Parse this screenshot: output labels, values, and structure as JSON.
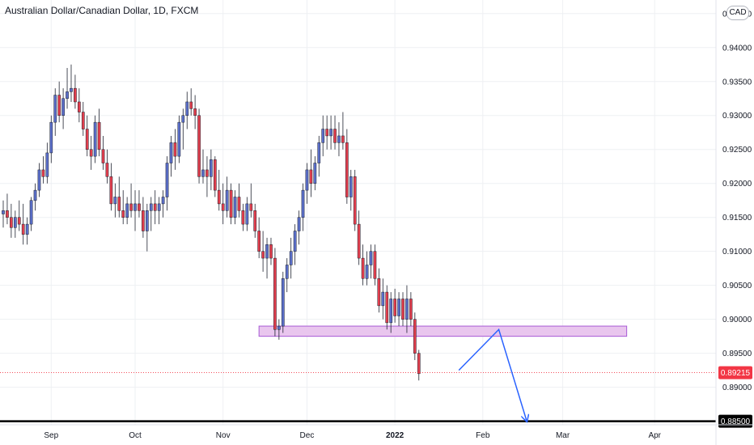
{
  "title": "Australian Dollar/Canadian Dollar, 1D, FXCM",
  "currency_badge": "CAD",
  "colors": {
    "up": "#5b6fc9",
    "down": "#e33f4e",
    "zone_fill": "#e9c6ee",
    "zone_stroke": "#a85bd6",
    "arrow": "#2962ff",
    "grid": "#eef0f3",
    "current": "#f23645"
  },
  "chart_data": {
    "type": "candlestick",
    "title": "Australian Dollar/Canadian Dollar, 1D, FXCM",
    "ylim": [
      0.8815,
      0.947
    ],
    "yticks": [
      "0.94500",
      "0.94000",
      "0.93500",
      "0.93000",
      "0.92500",
      "0.92000",
      "0.91500",
      "0.91000",
      "0.90500",
      "0.90000",
      "0.89500",
      "0.89000"
    ],
    "ytick_values": [
      0.945,
      0.94,
      0.935,
      0.93,
      0.925,
      0.92,
      0.915,
      0.91,
      0.905,
      0.9,
      0.895,
      0.89
    ],
    "x_labels": [
      {
        "text": "Sep",
        "index": 12,
        "bold": false
      },
      {
        "text": "Oct",
        "index": 33,
        "bold": false
      },
      {
        "text": "Nov",
        "index": 55,
        "bold": false
      },
      {
        "text": "Dec",
        "index": 76,
        "bold": false
      },
      {
        "text": "2022",
        "index": 98,
        "bold": true
      },
      {
        "text": "Feb",
        "index": 120,
        "bold": false
      },
      {
        "text": "Mar",
        "index": 140,
        "bold": false
      },
      {
        "text": "Apr",
        "index": 163,
        "bold": false
      }
    ],
    "candles": [
      [
        0.9155,
        0.9175,
        0.9135,
        0.916
      ],
      [
        0.916,
        0.9185,
        0.914,
        0.915
      ],
      [
        0.915,
        0.917,
        0.912,
        0.9135
      ],
      [
        0.9135,
        0.916,
        0.912,
        0.915
      ],
      [
        0.915,
        0.9175,
        0.913,
        0.914
      ],
      [
        0.914,
        0.917,
        0.911,
        0.9125
      ],
      [
        0.9125,
        0.915,
        0.911,
        0.914
      ],
      [
        0.914,
        0.918,
        0.913,
        0.9175
      ],
      [
        0.9175,
        0.92,
        0.916,
        0.919
      ],
      [
        0.919,
        0.923,
        0.918,
        0.922
      ],
      [
        0.922,
        0.924,
        0.92,
        0.921
      ],
      [
        0.921,
        0.926,
        0.92,
        0.9245
      ],
      [
        0.9245,
        0.93,
        0.923,
        0.929
      ],
      [
        0.929,
        0.934,
        0.927,
        0.933
      ],
      [
        0.933,
        0.935,
        0.929,
        0.93
      ],
      [
        0.93,
        0.934,
        0.928,
        0.9325
      ],
      [
        0.9325,
        0.937,
        0.931,
        0.9335
      ],
      [
        0.9335,
        0.9375,
        0.932,
        0.934
      ],
      [
        0.934,
        0.936,
        0.931,
        0.932
      ],
      [
        0.932,
        0.934,
        0.929,
        0.9305
      ],
      [
        0.9305,
        0.932,
        0.927,
        0.928
      ],
      [
        0.928,
        0.93,
        0.924,
        0.925
      ],
      [
        0.925,
        0.927,
        0.922,
        0.924
      ],
      [
        0.924,
        0.93,
        0.923,
        0.929
      ],
      [
        0.929,
        0.931,
        0.924,
        0.925
      ],
      [
        0.925,
        0.927,
        0.922,
        0.923
      ],
      [
        0.923,
        0.925,
        0.92,
        0.921
      ],
      [
        0.921,
        0.923,
        0.916,
        0.917
      ],
      [
        0.917,
        0.92,
        0.915,
        0.918
      ],
      [
        0.918,
        0.921,
        0.915,
        0.916
      ],
      [
        0.916,
        0.919,
        0.914,
        0.915
      ],
      [
        0.915,
        0.918,
        0.914,
        0.917
      ],
      [
        0.917,
        0.92,
        0.915,
        0.916
      ],
      [
        0.916,
        0.919,
        0.913,
        0.917
      ],
      [
        0.917,
        0.919,
        0.915,
        0.916
      ],
      [
        0.916,
        0.918,
        0.912,
        0.913
      ],
      [
        0.913,
        0.917,
        0.91,
        0.916
      ],
      [
        0.916,
        0.918,
        0.913,
        0.917
      ],
      [
        0.917,
        0.919,
        0.914,
        0.916
      ],
      [
        0.916,
        0.918,
        0.914,
        0.917
      ],
      [
        0.917,
        0.919,
        0.915,
        0.918
      ],
      [
        0.918,
        0.924,
        0.916,
        0.923
      ],
      [
        0.923,
        0.927,
        0.921,
        0.926
      ],
      [
        0.926,
        0.928,
        0.922,
        0.924
      ],
      [
        0.924,
        0.93,
        0.923,
        0.929
      ],
      [
        0.929,
        0.931,
        0.925,
        0.93
      ],
      [
        0.93,
        0.9335,
        0.928,
        0.932
      ],
      [
        0.932,
        0.934,
        0.93,
        0.931
      ],
      [
        0.931,
        0.933,
        0.928,
        0.93
      ],
      [
        0.93,
        0.931,
        0.92,
        0.921
      ],
      [
        0.921,
        0.925,
        0.92,
        0.922
      ],
      [
        0.922,
        0.924,
        0.918,
        0.921
      ],
      [
        0.921,
        0.925,
        0.919,
        0.9235
      ],
      [
        0.9235,
        0.924,
        0.918,
        0.919
      ],
      [
        0.919,
        0.922,
        0.916,
        0.917
      ],
      [
        0.917,
        0.92,
        0.914,
        0.916
      ],
      [
        0.916,
        0.921,
        0.915,
        0.919
      ],
      [
        0.919,
        0.92,
        0.914,
        0.915
      ],
      [
        0.915,
        0.919,
        0.914,
        0.918
      ],
      [
        0.918,
        0.92,
        0.915,
        0.916
      ],
      [
        0.916,
        0.917,
        0.913,
        0.914
      ],
      [
        0.914,
        0.918,
        0.913,
        0.917
      ],
      [
        0.917,
        0.92,
        0.915,
        0.916
      ],
      [
        0.916,
        0.917,
        0.912,
        0.913
      ],
      [
        0.913,
        0.915,
        0.909,
        0.91
      ],
      [
        0.91,
        0.913,
        0.907,
        0.909
      ],
      [
        0.909,
        0.912,
        0.906,
        0.911
      ],
      [
        0.911,
        0.912,
        0.908,
        0.909
      ],
      [
        0.909,
        0.9105,
        0.8975,
        0.8985
      ],
      [
        0.8985,
        0.9,
        0.897,
        0.899
      ],
      [
        0.899,
        0.907,
        0.898,
        0.906
      ],
      [
        0.906,
        0.909,
        0.904,
        0.908
      ],
      [
        0.908,
        0.912,
        0.906,
        0.91
      ],
      [
        0.91,
        0.914,
        0.908,
        0.913
      ],
      [
        0.913,
        0.916,
        0.911,
        0.915
      ],
      [
        0.915,
        0.92,
        0.913,
        0.919
      ],
      [
        0.919,
        0.923,
        0.917,
        0.922
      ],
      [
        0.922,
        0.925,
        0.918,
        0.92
      ],
      [
        0.92,
        0.924,
        0.919,
        0.923
      ],
      [
        0.923,
        0.927,
        0.921,
        0.926
      ],
      [
        0.926,
        0.93,
        0.924,
        0.928
      ],
      [
        0.928,
        0.93,
        0.925,
        0.927
      ],
      [
        0.927,
        0.93,
        0.925,
        0.928
      ],
      [
        0.928,
        0.93,
        0.925,
        0.926
      ],
      [
        0.926,
        0.929,
        0.924,
        0.927
      ],
      [
        0.927,
        0.9305,
        0.925,
        0.926
      ],
      [
        0.926,
        0.928,
        0.917,
        0.918
      ],
      [
        0.918,
        0.922,
        0.916,
        0.921
      ],
      [
        0.921,
        0.922,
        0.913,
        0.914
      ],
      [
        0.914,
        0.916,
        0.908,
        0.909
      ],
      [
        0.909,
        0.911,
        0.905,
        0.906
      ],
      [
        0.906,
        0.91,
        0.905,
        0.908
      ],
      [
        0.908,
        0.911,
        0.906,
        0.91
      ],
      [
        0.91,
        0.911,
        0.905,
        0.906
      ],
      [
        0.906,
        0.9075,
        0.901,
        0.902
      ],
      [
        0.902,
        0.906,
        0.9,
        0.904
      ],
      [
        0.904,
        0.905,
        0.8985,
        0.8995
      ],
      [
        0.8995,
        0.904,
        0.898,
        0.903
      ],
      [
        0.903,
        0.9045,
        0.8995,
        0.9005
      ],
      [
        0.9005,
        0.904,
        0.899,
        0.903
      ],
      [
        0.903,
        0.904,
        0.899,
        0.9
      ],
      [
        0.9,
        0.905,
        0.898,
        0.903
      ],
      [
        0.903,
        0.904,
        0.899,
        0.9
      ],
      [
        0.9,
        0.901,
        0.894,
        0.895
      ],
      [
        0.895,
        0.8955,
        0.891,
        0.892
      ]
    ],
    "support_zone": {
      "from": 0.8975,
      "to": 0.899,
      "start_index": 64,
      "end_index": 156
    },
    "projection": [
      {
        "index": 114,
        "value": 0.8925
      },
      {
        "index": 124,
        "value": 0.8985
      },
      {
        "index": 131,
        "value": 0.885
      }
    ],
    "horizontal_line": {
      "value": 0.885,
      "label": "0.88500"
    },
    "current_price": {
      "value": 0.89215,
      "label": "0.89215"
    }
  }
}
